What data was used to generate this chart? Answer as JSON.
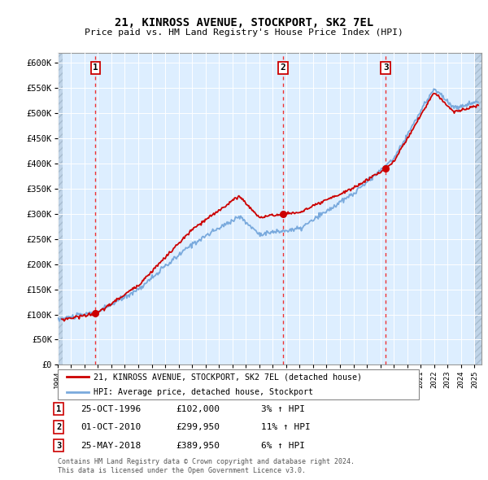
{
  "title": "21, KINROSS AVENUE, STOCKPORT, SK2 7EL",
  "subtitle": "Price paid vs. HM Land Registry's House Price Index (HPI)",
  "ylabel_ticks": [
    "£0",
    "£50K",
    "£100K",
    "£150K",
    "£200K",
    "£250K",
    "£300K",
    "£350K",
    "£400K",
    "£450K",
    "£500K",
    "£550K",
    "£600K"
  ],
  "ylim": [
    0,
    620000
  ],
  "xlim_start": 1994,
  "xlim_end": 2025.5,
  "transactions": [
    {
      "label": "1",
      "date_str": "25-OCT-1996",
      "year": 1996.82,
      "price": 102000,
      "pct": "3%"
    },
    {
      "label": "2",
      "date_str": "01-OCT-2010",
      "year": 2010.75,
      "price": 299950,
      "pct": "11%"
    },
    {
      "label": "3",
      "date_str": "25-MAY-2018",
      "year": 2018.4,
      "price": 389950,
      "pct": "6%"
    }
  ],
  "hpi_color": "#7aaadd",
  "price_color": "#cc0000",
  "dashed_color": "#ee3333",
  "bg_chart": "#ddeeff",
  "bg_hatch_color": "#c0d4e8",
  "grid_color": "#ffffff",
  "legend_entries": [
    "21, KINROSS AVENUE, STOCKPORT, SK2 7EL (detached house)",
    "HPI: Average price, detached house, Stockport"
  ],
  "footnote1": "Contains HM Land Registry data © Crown copyright and database right 2024.",
  "footnote2": "This data is licensed under the Open Government Licence v3.0."
}
